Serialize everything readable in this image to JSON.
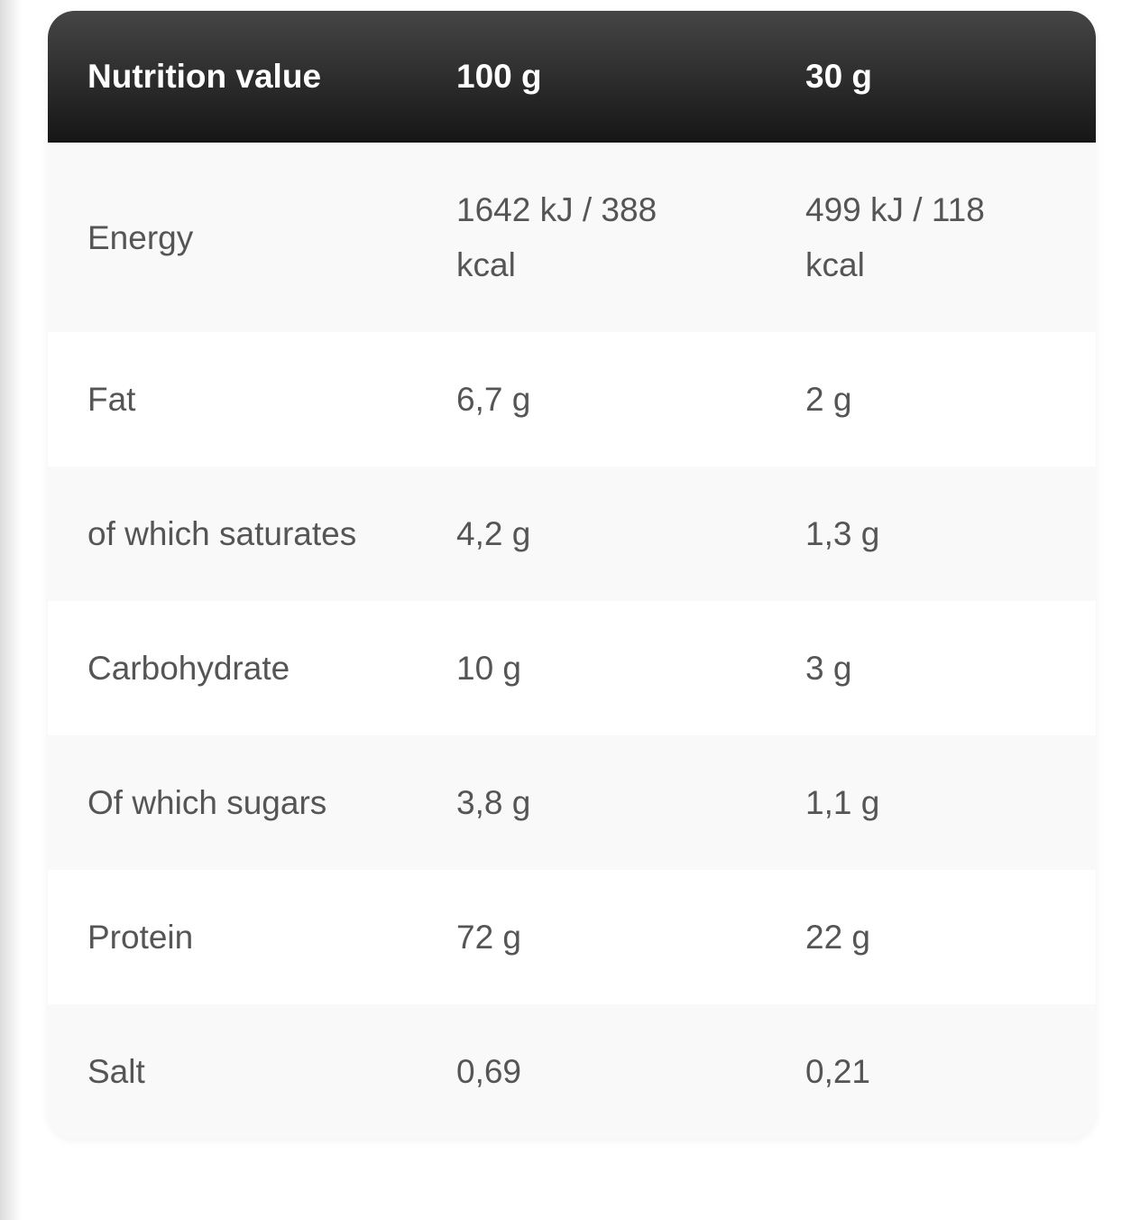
{
  "table": {
    "header": [
      "Nutrition value",
      "100 g",
      "30 g"
    ],
    "rows": [
      [
        "Energy",
        "1642 kJ / 388 kcal",
        "499 kJ / 118 kcal"
      ],
      [
        "Fat",
        "6,7 g",
        "2 g"
      ],
      [
        "of which saturates",
        "4,2 g",
        "1,3 g"
      ],
      [
        "Carbohydrate",
        "10 g",
        "3 g"
      ],
      [
        "Of which sugars",
        "3,8 g",
        "1,1 g"
      ],
      [
        "Protein",
        "72 g",
        "22 g"
      ],
      [
        "Salt",
        "0,69",
        "0,21"
      ]
    ]
  }
}
